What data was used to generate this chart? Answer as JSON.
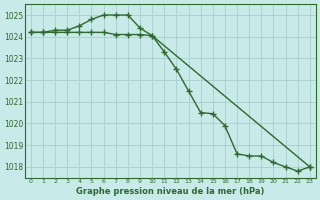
{
  "series1_x": [
    0,
    1,
    2,
    3,
    4,
    5,
    6,
    7,
    8,
    9,
    10,
    11,
    12,
    13,
    14,
    15,
    16,
    17,
    18,
    19,
    20,
    21,
    22,
    23
  ],
  "series1_y": [
    1024.2,
    1024.2,
    1024.3,
    1024.3,
    1024.5,
    1024.8,
    1025.0,
    1025.0,
    1025.0,
    1024.4,
    1024.05,
    1023.3,
    1022.5,
    1021.5,
    1020.5,
    1020.45,
    1019.9,
    1018.6,
    1018.5,
    1018.5,
    1018.2,
    1018.0,
    1017.8,
    1018.0
  ],
  "series2_x": [
    0,
    1,
    2,
    3,
    4,
    5,
    6,
    7,
    8,
    9,
    10,
    23
  ],
  "series2_y": [
    1024.2,
    1024.2,
    1024.2,
    1024.2,
    1024.2,
    1024.2,
    1024.2,
    1024.1,
    1024.1,
    1024.1,
    1024.05,
    1018.0
  ],
  "line_color": "#2d6a2d",
  "bg_color": "#c8eae8",
  "grid_color": "#a8cece",
  "text_color": "#2d6a2d",
  "xlabel": "Graphe pression niveau de la mer (hPa)",
  "ylim": [
    1017.5,
    1025.5
  ],
  "xlim": [
    -0.5,
    23.5
  ],
  "yticks": [
    1018,
    1019,
    1020,
    1021,
    1022,
    1023,
    1024,
    1025
  ],
  "xticks": [
    0,
    1,
    2,
    3,
    4,
    5,
    6,
    7,
    8,
    9,
    10,
    11,
    12,
    13,
    14,
    15,
    16,
    17,
    18,
    19,
    20,
    21,
    22,
    23
  ],
  "marker": "+",
  "markersize": 4,
  "linewidth": 1.0
}
